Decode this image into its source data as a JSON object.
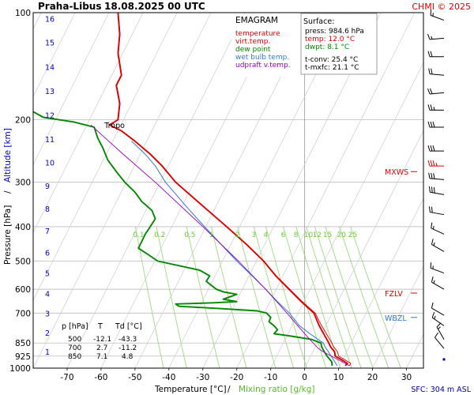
{
  "header": {
    "station": "Praha-Libus",
    "datetime": "18.08.2025 00 UTC",
    "copyright": "CHMI © 2025"
  },
  "legend": {
    "title": "EMAGRAM",
    "items": [
      {
        "label": "temperature",
        "color": "#dd0000"
      },
      {
        "label": "virt.temp.",
        "color": "#dd0000"
      },
      {
        "label": "dew point",
        "color": "#008800"
      },
      {
        "label": "wet bulb temp.",
        "color": "#3377cc"
      },
      {
        "label": "udpraft v.temp.",
        "color": "#9900bb"
      }
    ]
  },
  "surface": {
    "title": "Surface:",
    "lines": [
      {
        "text": "press: 984.6 hPa",
        "color": "#000000"
      },
      {
        "text": "temp: 12.0 °C",
        "color": "#dd0000"
      },
      {
        "text": "dwpt: 8.1 °C",
        "color": "#008800"
      },
      {
        "text": "",
        "color": "#000000"
      },
      {
        "text": "t-conv: 25.4 °C",
        "color": "#000000"
      },
      {
        "text": "t-mxfc: 21.1 °C",
        "color": "#000000"
      }
    ]
  },
  "levels_table": {
    "headers": [
      "p [hPa]",
      "T",
      "Td [°C]"
    ],
    "rows": [
      [
        "500",
        "-12.1",
        "-43.3"
      ],
      [
        "700",
        "2.7",
        "-11.2"
      ],
      [
        "850",
        "7.1",
        "4.8"
      ]
    ]
  },
  "axes": {
    "xlabel_temp": "Temperature [°C]",
    "xlabel_sep": "/",
    "xlabel_mix": "Mixing ratio [g/kg]",
    "ylabel_p": "Pressure [hPa]",
    "ylabel_sep": "/",
    "ylabel_alt": "Altitude [km]",
    "sfc_note": "SFC: 304 m ASL"
  },
  "markers": [
    {
      "label": "MXWS",
      "p": 280,
      "color": "#dd0000"
    },
    {
      "label": "FZLV",
      "p": 615,
      "color": "#dd0000"
    },
    {
      "label": "WBZL",
      "p": 720,
      "color": "#3377cc"
    }
  ],
  "tropo": {
    "label": "Tropo",
    "p": 207
  },
  "colors": {
    "temperature": "#dd0000",
    "dewpoint": "#008800",
    "wetbulb": "#3377cc",
    "parcel": "#9900bb",
    "isotherm": "#bbbbbb",
    "mixing": "#8fd66a",
    "mixing_label": "#66cc33",
    "grid": "#bbbbbb",
    "altitude": "#0000cc",
    "wind": "#000000",
    "wind_max": "#dd0000",
    "sfc_note": "#0000aa"
  },
  "chart_data": {
    "type": "line",
    "title": "Praha-Libus 18.08.2025 00 UTC",
    "xlabel": "Temperature [°C] / Mixing ratio [g/kg]",
    "ylabel": "Pressure [hPa] / Altitude [km]",
    "xlim": [
      -80,
      35
    ],
    "ylim": [
      1000,
      100
    ],
    "y_scale": "log",
    "x_ticks": [
      -70,
      -60,
      -50,
      -40,
      -30,
      -20,
      -10,
      0,
      10,
      20,
      30
    ],
    "y_ticks": [
      100,
      200,
      300,
      400,
      500,
      600,
      700,
      850,
      925,
      1000
    ],
    "altitude_km": [
      {
        "km": 1,
        "p": 899
      },
      {
        "km": 2,
        "p": 795
      },
      {
        "km": 3,
        "p": 701
      },
      {
        "km": 4,
        "p": 616
      },
      {
        "km": 5,
        "p": 540
      },
      {
        "km": 6,
        "p": 472
      },
      {
        "km": 7,
        "p": 411
      },
      {
        "km": 8,
        "p": 356
      },
      {
        "km": 9,
        "p": 307
      },
      {
        "km": 10,
        "p": 264
      },
      {
        "km": 11,
        "p": 227
      },
      {
        "km": 12,
        "p": 194
      },
      {
        "km": 13,
        "p": 166
      },
      {
        "km": 14,
        "p": 142
      },
      {
        "km": 15,
        "p": 121
      },
      {
        "km": 16,
        "p": 104
      }
    ],
    "mixing_ratio_lines": [
      0.1,
      0.2,
      0.5,
      1,
      2,
      3,
      4,
      6,
      8,
      10,
      12,
      15,
      20,
      25
    ],
    "mixing_ratio_labels": [
      "0.1",
      "0.2",
      "0.5",
      "1",
      "2",
      "3",
      "4",
      "6",
      "8",
      "10",
      "12",
      "15",
      "20",
      "25"
    ],
    "series": [
      {
        "name": "temperature",
        "points": [
          [
            984.6,
            12.0
          ],
          [
            970,
            12.6
          ],
          [
            955,
            11.5
          ],
          [
            925,
            9.0
          ],
          [
            900,
            8.8
          ],
          [
            870,
            7.6
          ],
          [
            850,
            7.1
          ],
          [
            800,
            5.6
          ],
          [
            760,
            4.3
          ],
          [
            700,
            2.7
          ],
          [
            650,
            -1.0
          ],
          [
            600,
            -4.6
          ],
          [
            550,
            -8.5
          ],
          [
            500,
            -12.1
          ],
          [
            450,
            -17.0
          ],
          [
            400,
            -23.0
          ],
          [
            350,
            -30.0
          ],
          [
            300,
            -38.0
          ],
          [
            270,
            -42.0
          ],
          [
            250,
            -45.5
          ],
          [
            230,
            -50.0
          ],
          [
            215,
            -54.0
          ],
          [
            207,
            -57.5
          ],
          [
            200,
            -55.0
          ],
          [
            180,
            -54.5
          ],
          [
            160,
            -55.5
          ],
          [
            150,
            -54.0
          ],
          [
            130,
            -55.0
          ],
          [
            115,
            -54.5
          ],
          [
            100,
            -55.0
          ]
        ]
      },
      {
        "name": "virt.temp.",
        "points": [
          [
            984.6,
            13.2
          ],
          [
            970,
            13.6
          ],
          [
            955,
            12.5
          ],
          [
            925,
            10.0
          ],
          [
            900,
            9.7
          ],
          [
            870,
            8.5
          ],
          [
            850,
            8.0
          ],
          [
            800,
            6.4
          ],
          [
            760,
            5.0
          ],
          [
            700,
            3.1
          ],
          [
            650,
            -0.7
          ],
          [
            600,
            -4.4
          ],
          [
            550,
            -8.4
          ],
          [
            500,
            -12.0
          ],
          [
            450,
            -16.9
          ],
          [
            400,
            -22.9
          ],
          [
            350,
            -29.9
          ],
          [
            300,
            -37.9
          ],
          [
            270,
            -41.9
          ],
          [
            250,
            -45.4
          ],
          [
            230,
            -49.9
          ],
          [
            215,
            -53.9
          ],
          [
            207,
            -57.4
          ],
          [
            200,
            -54.9
          ],
          [
            180,
            -54.4
          ],
          [
            160,
            -55.4
          ],
          [
            150,
            -53.9
          ],
          [
            130,
            -54.9
          ],
          [
            115,
            -54.4
          ],
          [
            100,
            -54.9
          ]
        ]
      },
      {
        "name": "dew point",
        "points": [
          [
            984.6,
            8.1
          ],
          [
            960,
            8.0
          ],
          [
            925,
            6.6
          ],
          [
            900,
            5.8
          ],
          [
            870,
            5.0
          ],
          [
            850,
            4.8
          ],
          [
            830,
            2.0
          ],
          [
            810,
            -5.0
          ],
          [
            800,
            -9.0
          ],
          [
            780,
            -8.0
          ],
          [
            760,
            -9.0
          ],
          [
            740,
            -10.5
          ],
          [
            720,
            -10.0
          ],
          [
            700,
            -11.2
          ],
          [
            690,
            -14.0
          ],
          [
            680,
            -25.0
          ],
          [
            670,
            -37.0
          ],
          [
            660,
            -38.0
          ],
          [
            655,
            -27.0
          ],
          [
            650,
            -20.0
          ],
          [
            640,
            -24.0
          ],
          [
            630,
            -22.0
          ],
          [
            620,
            -20.0
          ],
          [
            610,
            -24.0
          ],
          [
            600,
            -26.0
          ],
          [
            570,
            -29.0
          ],
          [
            550,
            -28.0
          ],
          [
            530,
            -31.0
          ],
          [
            500,
            -43.3
          ],
          [
            480,
            -46.0
          ],
          [
            460,
            -49.0
          ],
          [
            440,
            -48.0
          ],
          [
            420,
            -47.0
          ],
          [
            400,
            -45.5
          ],
          [
            380,
            -44.0
          ],
          [
            360,
            -45.0
          ],
          [
            340,
            -48.0
          ],
          [
            320,
            -50.0
          ],
          [
            300,
            -53.0
          ],
          [
            280,
            -55.5
          ],
          [
            260,
            -58.0
          ],
          [
            240,
            -59.5
          ],
          [
            225,
            -61.0
          ],
          [
            210,
            -62.0
          ],
          [
            203,
            -68.0
          ],
          [
            197,
            -77.0
          ],
          [
            190,
            -80.0
          ]
        ]
      },
      {
        "name": "wet bulb temp.",
        "points": [
          [
            984.6,
            9.6
          ],
          [
            950,
            8.6
          ],
          [
            925,
            7.8
          ],
          [
            900,
            7.0
          ],
          [
            870,
            6.0
          ],
          [
            850,
            5.5
          ],
          [
            800,
            1.5
          ],
          [
            760,
            -1.5
          ],
          [
            720,
            -3.5
          ],
          [
            700,
            -4.5
          ],
          [
            650,
            -8.0
          ],
          [
            600,
            -11.5
          ],
          [
            550,
            -15.5
          ],
          [
            500,
            -20.0
          ],
          [
            450,
            -24.5
          ],
          [
            400,
            -29.5
          ],
          [
            350,
            -35.0
          ],
          [
            300,
            -41.0
          ],
          [
            270,
            -44.0
          ],
          [
            250,
            -47.0
          ],
          [
            230,
            -51.0
          ]
        ]
      },
      {
        "name": "udpraft v.temp.",
        "points": [
          [
            984.6,
            13.2
          ],
          [
            900,
            5.5
          ],
          [
            880,
            4.0
          ],
          [
            820,
            1.0
          ],
          [
            760,
            -2.0
          ],
          [
            700,
            -5.2
          ],
          [
            600,
            -11.5
          ],
          [
            500,
            -19.5
          ],
          [
            400,
            -30.0
          ],
          [
            300,
            -44.0
          ],
          [
            250,
            -53.5
          ],
          [
            207,
            -63.0
          ]
        ]
      }
    ],
    "wind_barbs": [
      {
        "p": 945,
        "dir": 180,
        "spd": 0
      },
      {
        "p": 880,
        "dir": 320,
        "spd": 10
      },
      {
        "p": 830,
        "dir": 330,
        "spd": 15
      },
      {
        "p": 760,
        "dir": 305,
        "spd": 15
      },
      {
        "p": 710,
        "dir": 300,
        "spd": 10
      },
      {
        "p": 600,
        "dir": 300,
        "spd": 15
      },
      {
        "p": 540,
        "dir": 290,
        "spd": 15
      },
      {
        "p": 470,
        "dir": 300,
        "spd": 15
      },
      {
        "p": 420,
        "dir": 295,
        "spd": 15
      },
      {
        "p": 370,
        "dir": 280,
        "spd": 20
      },
      {
        "p": 325,
        "dir": 280,
        "spd": 30
      },
      {
        "p": 295,
        "dir": 275,
        "spd": 30
      },
      {
        "p": 270,
        "dir": 270,
        "spd": 35,
        "max": true
      },
      {
        "p": 245,
        "dir": 270,
        "spd": 30
      },
      {
        "p": 210,
        "dir": 270,
        "spd": 30
      },
      {
        "p": 188,
        "dir": 270,
        "spd": 25
      },
      {
        "p": 168,
        "dir": 265,
        "spd": 20
      },
      {
        "p": 150,
        "dir": 275,
        "spd": 20
      },
      {
        "p": 133,
        "dir": 270,
        "spd": 20
      },
      {
        "p": 118,
        "dir": 265,
        "spd": 15
      },
      {
        "p": 105,
        "dir": 290,
        "spd": 15
      }
    ]
  }
}
